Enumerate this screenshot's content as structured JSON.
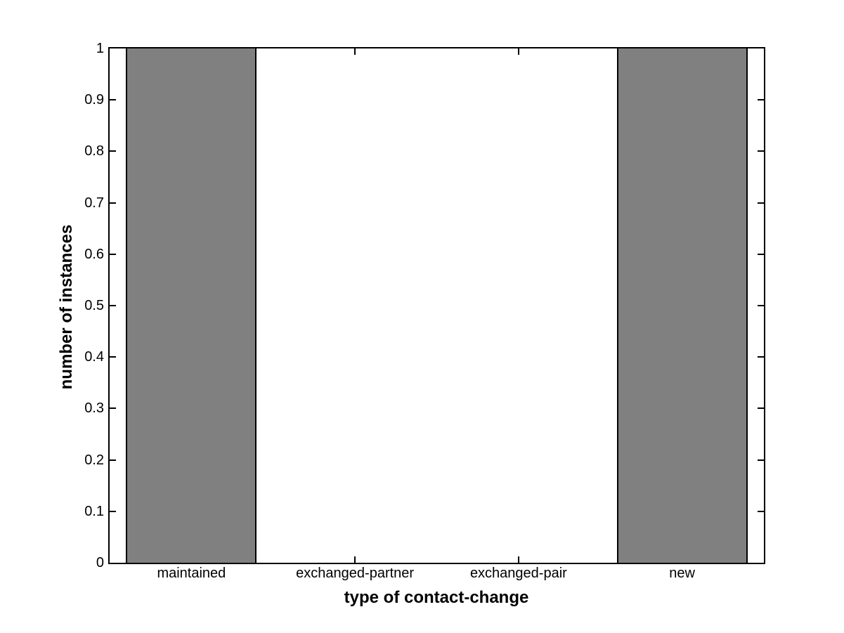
{
  "figure": {
    "background": "#ffffff"
  },
  "chart_data": {
    "type": "bar",
    "xlabel": "type of contact-change",
    "ylabel": "number of instances",
    "categories": [
      "maintained",
      "exchanged-partner",
      "exchanged-pair",
      "new"
    ],
    "values": [
      1,
      0,
      0,
      1
    ],
    "ylim": [
      0,
      1
    ],
    "xlim": [
      0.5,
      4.5
    ],
    "yticks": [
      0,
      0.1,
      0.2,
      0.3,
      0.4,
      0.5,
      0.6,
      0.7,
      0.8,
      0.9,
      1
    ],
    "ytick_labels": [
      "0",
      "0.1",
      "0.2",
      "0.3",
      "0.4",
      "0.5",
      "0.6",
      "0.7",
      "0.8",
      "0.9",
      "1"
    ],
    "bar_width_fraction": 0.8,
    "grid": false,
    "legend_position": "none",
    "colors": {
      "bar_fill": "#808080",
      "bar_edge": "#000000",
      "axis": "#000000",
      "text": "#000000"
    }
  }
}
